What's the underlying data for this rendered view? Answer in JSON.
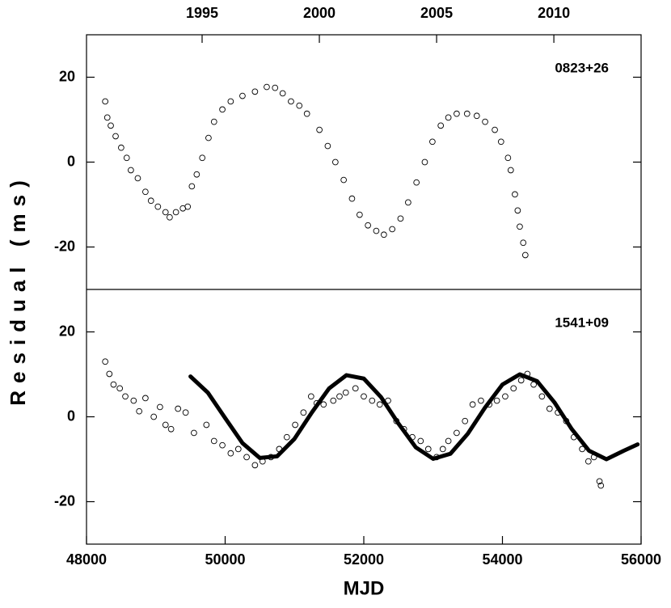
{
  "chart_data": [
    {
      "type": "scatter",
      "label": "0823+26",
      "ylabel": "Residual (ms)",
      "xlim": [
        48000,
        56000
      ],
      "ylim": [
        -30,
        30
      ],
      "yticks": [
        -20,
        0,
        20
      ],
      "x2lim": [
        1990.07,
        2013.72
      ],
      "x2ticks": [
        1995,
        2000,
        2005,
        2010
      ],
      "series": [
        {
          "marker": "circle",
          "color": "#000",
          "x": [
            48270,
            48300,
            48350,
            48420,
            48500,
            48580,
            48640,
            48740,
            48850,
            48930,
            49030,
            49140,
            49200,
            49290,
            49390,
            49460,
            49520,
            49590,
            49670,
            49760,
            49840,
            49960,
            50080,
            50250,
            50430,
            50600,
            50720,
            50830,
            50950,
            51070,
            51180,
            51360,
            51480,
            51590,
            51710,
            51830,
            51940,
            52060,
            52180,
            52290,
            52410,
            52530,
            52640,
            52760,
            52880,
            52990,
            53110,
            53220,
            53340,
            53490,
            53630,
            53750,
            53890,
            53980,
            54080,
            54120,
            54180,
            54220,
            54250,
            54300,
            54330
          ],
          "values": [
            14.3,
            10.5,
            8.6,
            6.1,
            3.4,
            1,
            -1.9,
            -3.8,
            -7,
            -9.1,
            -10.5,
            -11.8,
            -13,
            -11.8,
            -10.9,
            -10.5,
            -5.7,
            -2.9,
            1,
            5.7,
            9.5,
            12.4,
            14.3,
            15.6,
            16.6,
            17.7,
            17.5,
            16.2,
            14.3,
            13.3,
            11.4,
            7.6,
            3.8,
            0,
            -4.2,
            -8.6,
            -12.4,
            -14.9,
            -16.2,
            -17.1,
            -15.8,
            -13.3,
            -9.5,
            -4.8,
            0,
            4.8,
            8.6,
            10.5,
            11.4,
            11.4,
            10.9,
            9.5,
            7.6,
            4.8,
            1,
            -1.9,
            -7.6,
            -11.4,
            -15.2,
            -19,
            -21.9
          ]
        }
      ]
    },
    {
      "type": "scatter",
      "label": "1541+09",
      "xlabel": "MJD",
      "xlim": [
        48000,
        56000
      ],
      "xticks": [
        48000,
        50000,
        52000,
        54000,
        56000
      ],
      "ylim": [
        -30,
        30
      ],
      "yticks": [
        -20,
        0,
        20
      ],
      "series": [
        {
          "marker": "circle",
          "color": "#000",
          "x": [
            48270,
            48330,
            48390,
            48480,
            48560,
            48680,
            48760,
            48850,
            48970,
            49060,
            49140,
            49220,
            49320,
            49430,
            49550,
            49730,
            49840,
            49960,
            50080,
            50190,
            50310,
            50430,
            50540,
            50660,
            50780,
            50890,
            51010,
            51130,
            51240,
            51320,
            51420,
            51560,
            51650,
            51740,
            51880,
            52000,
            52120,
            52230,
            52350,
            52470,
            52580,
            52700,
            52820,
            52930,
            53050,
            53140,
            53220,
            53340,
            53460,
            53570,
            53690,
            53810,
            53920,
            54040,
            54160,
            54270,
            54360,
            54450,
            54570,
            54680,
            54800,
            54920,
            55030,
            55150,
            55240,
            55320,
            55400,
            55420
          ],
          "values": [
            13,
            10.1,
            7.6,
            6.7,
            4.8,
            3.8,
            1.3,
            4.4,
            0,
            2.3,
            -1.9,
            -2.9,
            1.9,
            1,
            -3.8,
            -1.9,
            -5.7,
            -6.7,
            -8.6,
            -7.6,
            -9.5,
            -11.4,
            -10.5,
            -9.5,
            -7.6,
            -4.8,
            -1.9,
            1,
            4.8,
            3.2,
            2.9,
            3.8,
            4.8,
            5.7,
            6.7,
            4.8,
            3.8,
            2.9,
            3.8,
            -1,
            -2.9,
            -4.8,
            -5.7,
            -7.6,
            -9.5,
            -7.6,
            -5.7,
            -3.8,
            -1,
            2.9,
            3.8,
            2.9,
            3.8,
            4.8,
            6.7,
            8.6,
            10.1,
            7.6,
            4.8,
            1.9,
            1,
            -1,
            -4.8,
            -7.6,
            -10.5,
            -9.5,
            -15.2,
            -16.2
          ]
        },
        {
          "marker": "line",
          "color": "#000",
          "x": [
            49500,
            49750,
            50000,
            50250,
            50500,
            50750,
            51000,
            51250,
            51500,
            51750,
            52000,
            52250,
            52500,
            52750,
            53000,
            53250,
            53500,
            53750,
            54000,
            54250,
            54500,
            54750,
            55000,
            55250,
            55500,
            55750,
            55950
          ],
          "values": [
            9.5,
            5.7,
            -0.3,
            -6.2,
            -9.7,
            -9.3,
            -5.2,
            1.0,
            6.7,
            9.8,
            9.0,
            4.6,
            -1.6,
            -7.2,
            -9.9,
            -8.7,
            -4.0,
            2.2,
            7.6,
            10.0,
            8.4,
            3.4,
            -2.9,
            -8.0,
            -10.0,
            -8.0,
            -6.5
          ]
        }
      ]
    }
  ]
}
